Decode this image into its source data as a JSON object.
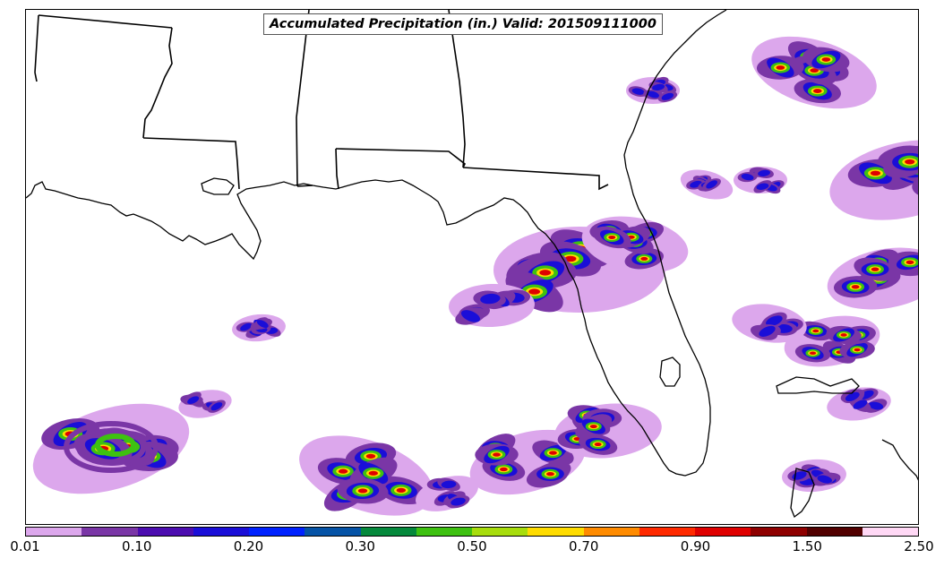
{
  "title": "Accumulated Precipitation (in.) Valid: 201509111000",
  "legend": {
    "colors": [
      "#dca7ec",
      "#7a36a6",
      "#4c0db0",
      "#1a0ed8",
      "#0022ff",
      "#0553a6",
      "#05893c",
      "#3ec111",
      "#a7dd0c",
      "#ffdc00",
      "#ff8b00",
      "#ff2a00",
      "#df0000",
      "#8e0000",
      "#510000",
      "#ffd8f5"
    ],
    "tick_labels": [
      "0.01",
      "0.10",
      "0.20",
      "0.30",
      "0.50",
      "0.70",
      "0.90",
      "1.50",
      "2.50"
    ]
  },
  "map": {
    "features": [
      "coastline",
      "state-borders"
    ],
    "precip_colors": {
      "light": "#dca7ec",
      "purple": "#7a36a6",
      "blue": "#1a0ed8",
      "green": "#3ec111",
      "yellow": "#ffdc00",
      "red": "#df0000",
      "dark-red": "#8e0000"
    }
  }
}
